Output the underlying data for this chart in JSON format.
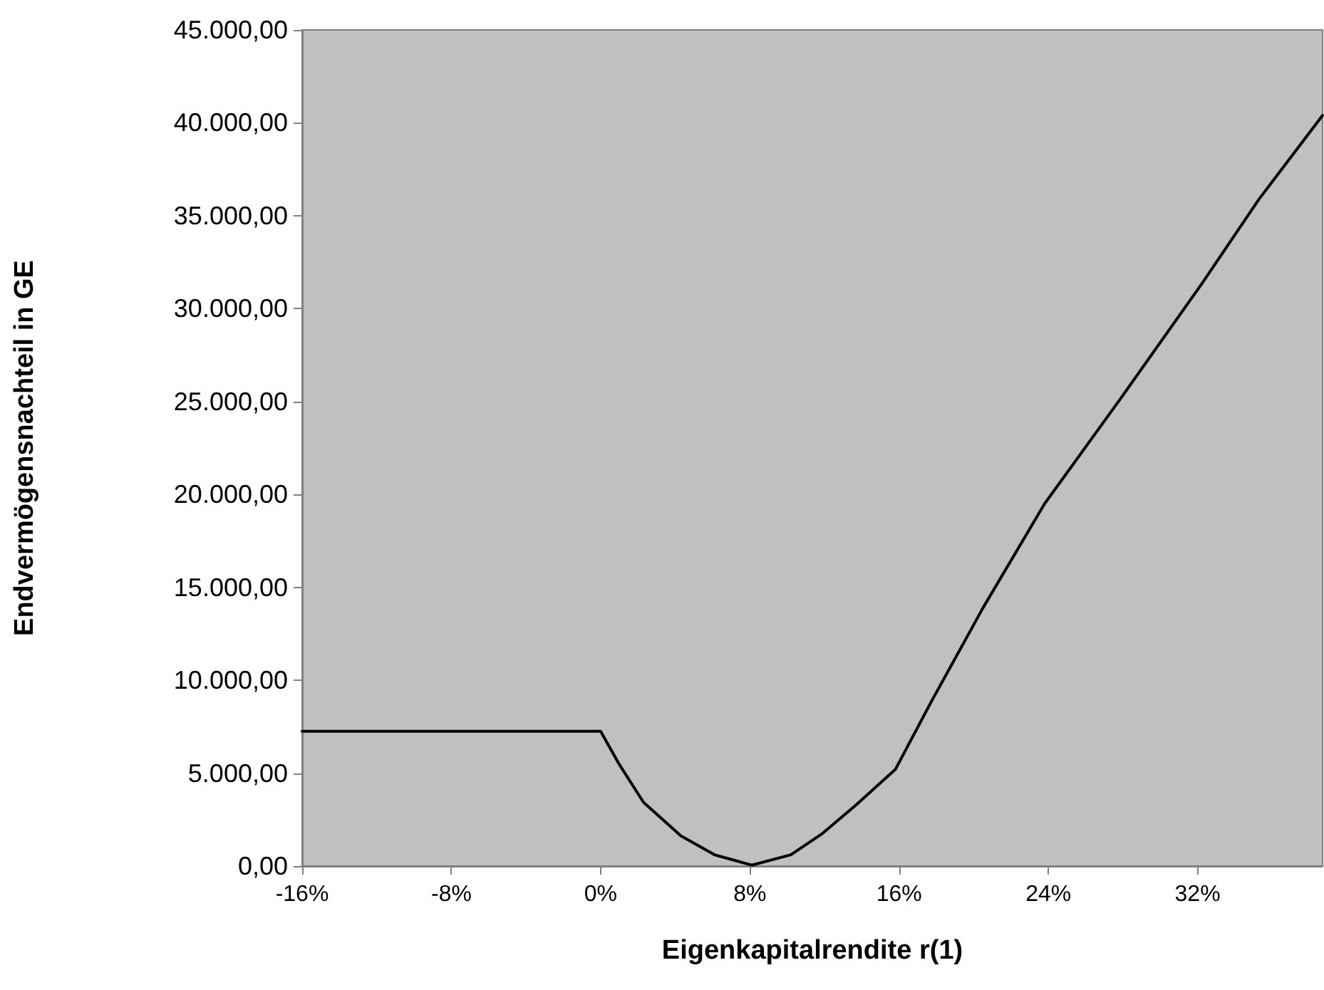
{
  "chart_data": {
    "type": "line",
    "xlabel": "Eigenkapitalrendite r(1)",
    "ylabel": "Endvermögensnachteil in GE",
    "x": [
      -16,
      0,
      1,
      2.3,
      4.3,
      6.1,
      8.1,
      10.2,
      11.9,
      13.7,
      15.8,
      17.7,
      20.5,
      23.8,
      27.9,
      32.2,
      35.3,
      38.7
    ],
    "series": [
      {
        "color": "#000000",
        "values": [
          7250,
          7250,
          5470,
          3430,
          1630,
          610,
          50,
          610,
          1760,
          3300,
          5200,
          8800,
          13900,
          19500,
          25200,
          31300,
          35900,
          40400
        ]
      }
    ],
    "xlim": [
      -16,
      38.7
    ],
    "xticks": [
      {
        "value": -16,
        "label": "-16%"
      },
      {
        "value": -8,
        "label": "-8%"
      },
      {
        "value": 0,
        "label": "0%"
      },
      {
        "value": 8,
        "label": "8%"
      },
      {
        "value": 16,
        "label": "16%"
      },
      {
        "value": 24,
        "label": "24%"
      },
      {
        "value": 32,
        "label": "32%"
      }
    ],
    "ylim": [
      0,
      45000
    ],
    "yticks": [
      {
        "value": 0,
        "label": "0,00"
      },
      {
        "value": 5000,
        "label": "5.000,00"
      },
      {
        "value": 10000,
        "label": "10.000,00"
      },
      {
        "value": 15000,
        "label": "15.000,00"
      },
      {
        "value": 20000,
        "label": "20.000,00"
      },
      {
        "value": 25000,
        "label": "25.000,00"
      },
      {
        "value": 30000,
        "label": "30.000,00"
      },
      {
        "value": 35000,
        "label": "35.000,00"
      },
      {
        "value": 40000,
        "label": "40.000,00"
      },
      {
        "value": 45000,
        "label": "45.000,00"
      }
    ],
    "grid": false,
    "marker": "none",
    "line_style": "solid"
  }
}
